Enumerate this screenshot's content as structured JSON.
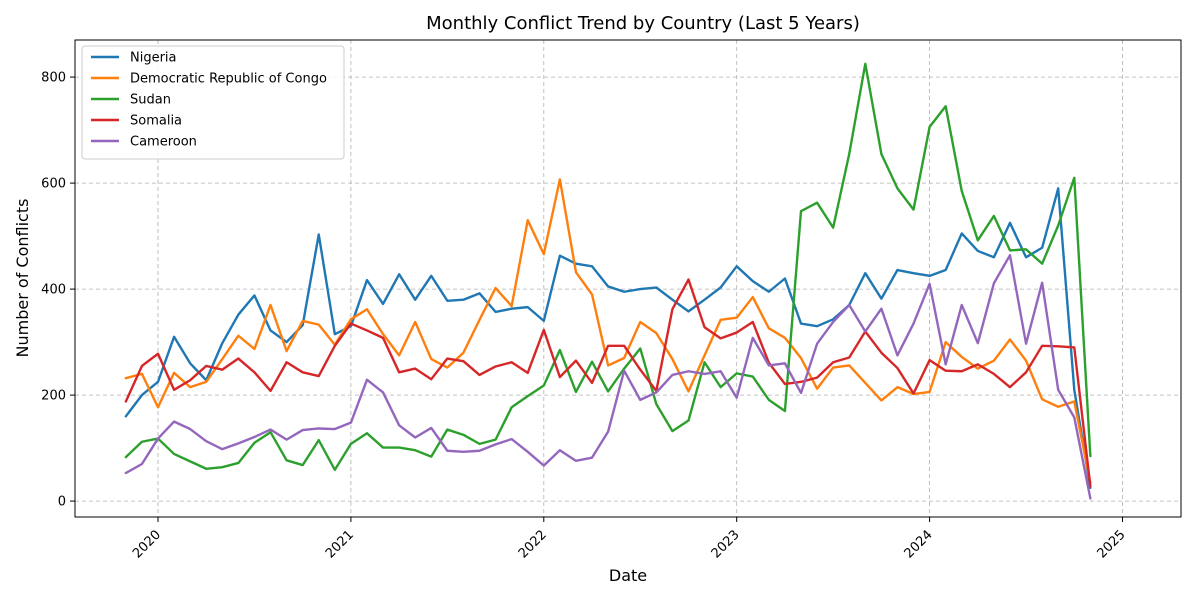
{
  "chart_data": {
    "type": "line",
    "title": "Monthly Conflict Trend by Country (Last 5 Years)",
    "xlabel": "Date",
    "ylabel": "Number of Conflicts",
    "x_start": "2019-11",
    "x_tick_labels": [
      "2020",
      "2021",
      "2022",
      "2023",
      "2024",
      "2025"
    ],
    "y_ticks": [
      0,
      200,
      400,
      600,
      800
    ],
    "ylim": [
      -30,
      870
    ],
    "grid": true,
    "legend_position": "upper-left",
    "series": [
      {
        "name": "Nigeria",
        "color": "#1f77b4",
        "values": [
          160,
          200,
          225,
          310,
          260,
          228,
          298,
          352,
          388,
          322,
          300,
          332,
          503,
          315,
          330,
          417,
          372,
          428,
          380,
          425,
          378,
          380,
          392,
          357,
          363,
          366,
          340,
          463,
          448,
          443,
          405,
          395,
          400,
          403,
          380,
          358,
          380,
          403,
          443,
          415,
          395,
          420,
          335,
          330,
          343,
          370,
          430,
          382,
          436,
          430,
          425,
          436,
          505,
          472,
          460,
          525,
          460,
          478,
          590,
          210,
          25
        ]
      },
      {
        "name": "Democratic Republic of Congo",
        "color": "#ff7f0e",
        "values": [
          232,
          240,
          177,
          242,
          215,
          225,
          268,
          312,
          287,
          370,
          283,
          340,
          333,
          295,
          343,
          362,
          315,
          275,
          338,
          268,
          252,
          280,
          342,
          402,
          368,
          530,
          466,
          607,
          432,
          390,
          256,
          270,
          338,
          317,
          268,
          207,
          275,
          342,
          346,
          385,
          326,
          308,
          270,
          212,
          252,
          256,
          223,
          190,
          215,
          202,
          206,
          300,
          272,
          250,
          265,
          305,
          265,
          192,
          178,
          188,
          35
        ]
      },
      {
        "name": "Sudan",
        "color": "#2ca02c",
        "values": [
          83,
          112,
          118,
          89,
          75,
          61,
          64,
          72,
          110,
          130,
          77,
          68,
          115,
          59,
          108,
          128,
          101,
          101,
          96,
          84,
          135,
          125,
          108,
          116,
          177,
          198,
          218,
          285,
          206,
          263,
          207,
          250,
          288,
          183,
          132,
          152,
          262,
          215,
          241,
          235,
          191,
          170,
          547,
          563,
          516,
          655,
          825,
          655,
          590,
          550,
          706,
          745,
          585,
          492,
          538,
          473,
          475,
          448,
          520,
          610,
          85
        ]
      },
      {
        "name": "Somalia",
        "color": "#d62728",
        "values": [
          188,
          255,
          278,
          210,
          228,
          255,
          248,
          269,
          243,
          208,
          262,
          243,
          236,
          293,
          335,
          322,
          308,
          243,
          250,
          230,
          269,
          264,
          238,
          254,
          262,
          242,
          323,
          234,
          265,
          223,
          293,
          293,
          248,
          208,
          362,
          418,
          328,
          307,
          318,
          338,
          261,
          221,
          225,
          233,
          262,
          271,
          320,
          280,
          251,
          203,
          266,
          246,
          245,
          258,
          240,
          215,
          243,
          293,
          292,
          290,
          28
        ]
      },
      {
        "name": "Cameroon",
        "color": "#9467bd",
        "values": [
          53,
          70,
          118,
          150,
          136,
          113,
          98,
          109,
          121,
          135,
          116,
          134,
          137,
          136,
          148,
          229,
          205,
          143,
          120,
          138,
          95,
          93,
          95,
          107,
          117,
          93,
          67,
          96,
          76,
          82,
          131,
          246,
          191,
          205,
          238,
          245,
          240,
          245,
          195,
          308,
          256,
          260,
          204,
          297,
          338,
          370,
          320,
          363,
          275,
          335,
          410,
          258,
          370,
          298,
          411,
          464,
          297,
          412,
          210,
          158,
          5
        ]
      }
    ]
  }
}
